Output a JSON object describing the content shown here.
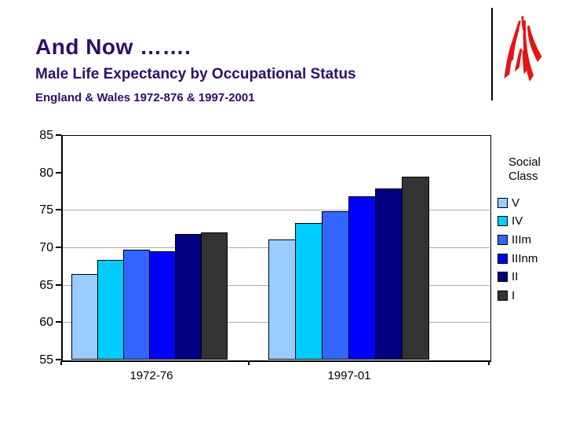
{
  "slide": {
    "title": "And Now …….",
    "subtitle": "Male Life Expectancy by Occupational Status",
    "subtitle2": "England & Wales 1972-876 & 1997-2001"
  },
  "colors": {
    "title_text": "#300C69",
    "logo_red": "#E41414",
    "gridline": "#ABABAB",
    "axis_text": "#000000"
  },
  "chart_data": {
    "type": "bar",
    "title": "Male Life Expectancy by Occupational Status",
    "categories": [
      "1972-76",
      "1997-01"
    ],
    "series": [
      {
        "name": "V",
        "color": "#99CCFF",
        "values": [
          66.4,
          71.0
        ]
      },
      {
        "name": "IV",
        "color": "#00CCFF",
        "values": [
          68.3,
          73.3
        ]
      },
      {
        "name": "IIIm",
        "color": "#3366FF",
        "values": [
          69.7,
          74.8
        ]
      },
      {
        "name": "IIInm",
        "color": "#0000FF",
        "values": [
          69.5,
          76.8
        ]
      },
      {
        "name": "II",
        "color": "#000080",
        "values": [
          71.8,
          77.9
        ]
      },
      {
        "name": "I",
        "color": "#333333",
        "values": [
          72.0,
          79.4
        ]
      }
    ],
    "xlabel": "",
    "ylabel": "",
    "ylim": [
      55,
      85
    ],
    "yticks": [
      55,
      60,
      65,
      70,
      75,
      80,
      85
    ],
    "gridline_values": [
      60,
      65,
      70,
      75
    ],
    "grid": "horizontal-partial",
    "legend_title": "Social Class",
    "legend_position": "right"
  }
}
